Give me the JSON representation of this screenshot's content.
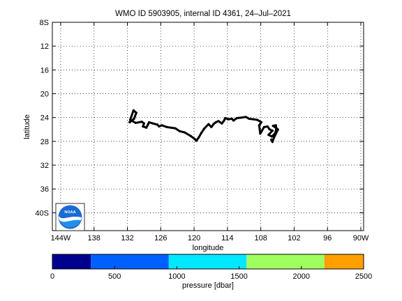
{
  "chart_data": {
    "type": "line",
    "title": "WMO ID 5903905, internal ID 4361, 24–Jul–2021",
    "xlabel": "longitude",
    "ylabel": "latitude",
    "xlim": [
      -145.5,
      -89.5
    ],
    "ylim": [
      -43,
      -8
    ],
    "grid": true,
    "x_ticks": [
      -144,
      -138,
      -132,
      -126,
      -120,
      -114,
      -108,
      -102,
      -96,
      -90
    ],
    "x_tick_labels": [
      "144W",
      "138",
      "132",
      "126",
      "120",
      "114",
      "108",
      "102",
      "96",
      "90W"
    ],
    "y_ticks": [
      -8,
      -12,
      -16,
      -20,
      -24,
      -28,
      -32,
      -36,
      -40
    ],
    "y_tick_labels": [
      "8S",
      "12",
      "16",
      "20",
      "24",
      "28",
      "32",
      "36",
      "40S"
    ],
    "series": [
      {
        "line_color": "#000000",
        "x": [
          -131.6,
          -130.8,
          -130.4,
          -130.9,
          -131.5,
          -130.5,
          -129.4,
          -129.0,
          -129.2,
          -128.6,
          -128.3,
          -128.1,
          -127.4,
          -126.6,
          -126.3,
          -125.8,
          -124.9,
          -123.4,
          -122.6,
          -121.7,
          -120.6,
          -119.9,
          -119.6,
          -119.2,
          -118.7,
          -118.2,
          -117.4,
          -116.9,
          -116.5,
          -116.1,
          -115.6,
          -115.0,
          -114.6,
          -114.4,
          -113.8,
          -113.2,
          -112.9,
          -112.3,
          -111.4,
          -110.7,
          -110.1,
          -109.3,
          -108.6,
          -107.9,
          -108.3,
          -108.1,
          -107.4,
          -106.8,
          -106.4,
          -105.9,
          -106.6,
          -106.0,
          -105.4,
          -105.2,
          -105.3,
          -105.8,
          -104.9,
          -105.6,
          -105.9,
          -106.1
        ],
        "y": [
          -24.8,
          -24.2,
          -23.2,
          -22.8,
          -24.4,
          -24.9,
          -24.7,
          -25.0,
          -25.5,
          -25.7,
          -25.2,
          -24.8,
          -25.0,
          -25.2,
          -25.5,
          -25.3,
          -25.6,
          -25.8,
          -26.3,
          -26.5,
          -27.1,
          -27.6,
          -27.9,
          -27.4,
          -26.6,
          -25.9,
          -25.1,
          -25.6,
          -25.1,
          -24.8,
          -24.6,
          -25.0,
          -24.5,
          -24.1,
          -24.3,
          -24.2,
          -24.5,
          -24.1,
          -24.0,
          -23.9,
          -24.2,
          -24.3,
          -24.4,
          -24.8,
          -25.3,
          -26.7,
          -25.6,
          -25.5,
          -26.0,
          -26.2,
          -26.9,
          -27.2,
          -26.6,
          -25.8,
          -25.3,
          -25.4,
          -26.0,
          -27.3,
          -28.1,
          -27.7
        ]
      }
    ],
    "colorbar": {
      "label": "pressure [dbar]",
      "ticks": [
        0,
        500,
        1000,
        1500,
        2000,
        2500
      ],
      "tick_labels": [
        "0",
        "500",
        "1000",
        "1500",
        "2000",
        "2500"
      ],
      "segments": [
        {
          "from": 0,
          "to": 310,
          "color": "#00008f"
        },
        {
          "from": 310,
          "to": 935,
          "color": "#0060ff"
        },
        {
          "from": 935,
          "to": 1560,
          "color": "#00e8ff"
        },
        {
          "from": 1560,
          "to": 2185,
          "color": "#9fff5f"
        },
        {
          "from": 2185,
          "to": 2500,
          "color": "#ffa000"
        }
      ]
    },
    "logo": {
      "text": "NOAA"
    }
  }
}
